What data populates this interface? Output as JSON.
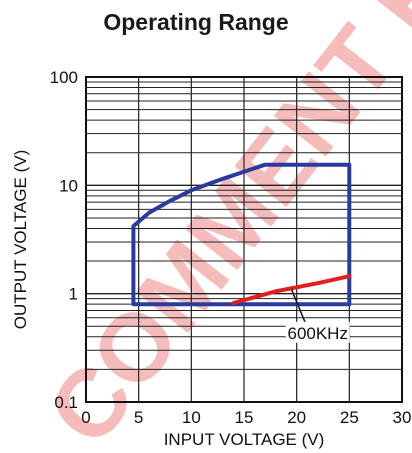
{
  "watermark": {
    "text": "COMMENT EXPIRE",
    "color": "#f4a6a6"
  },
  "chart_data": {
    "type": "line",
    "title": "Operating Range",
    "xlabel": "INPUT VOLTAGE (V)",
    "ylabel": "OUTPUT VOLTAGE (V)",
    "xlim": [
      0,
      30
    ],
    "ylim": [
      0.1,
      100
    ],
    "yscale": "log",
    "grid": true,
    "x_ticks": [
      0,
      5,
      10,
      15,
      20,
      25,
      30
    ],
    "x_tick_labels": [
      "0",
      "5",
      "10",
      "15",
      "20",
      "25",
      "30"
    ],
    "y_ticks": [
      0.1,
      1,
      10,
      100
    ],
    "y_tick_labels": [
      "0.1",
      "1",
      "10",
      "100"
    ],
    "series": [
      {
        "color": "#2b3a9e",
        "x": [
          4.5,
          4.5,
          6,
          8,
          10,
          13,
          17,
          25,
          25,
          4.5
        ],
        "y": [
          0.8,
          4.2,
          5.6,
          7.2,
          9,
          11.5,
          15.5,
          15.5,
          0.8,
          0.8
        ]
      },
      {
        "color": "#e02020",
        "x": [
          14,
          18,
          22,
          25
        ],
        "y": [
          0.82,
          1.05,
          1.25,
          1.45
        ]
      }
    ],
    "annotations": [
      {
        "text": "600KHz",
        "x": 22,
        "y": 0.4,
        "target_x": 19.5,
        "target_y": 1.1
      }
    ]
  }
}
